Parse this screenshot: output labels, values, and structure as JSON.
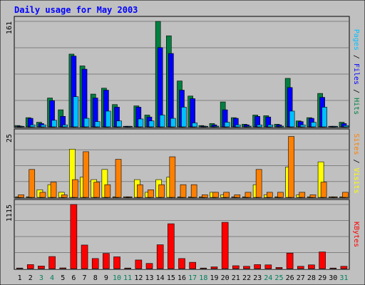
{
  "chart_data": {
    "type": "bar",
    "title": "Daily usage for May 2003",
    "days": [
      "1",
      "2",
      "3",
      "4",
      "5",
      "6",
      "7",
      "8",
      "9",
      "10",
      "11",
      "12",
      "13",
      "14",
      "15",
      "16",
      "17",
      "18",
      "19",
      "20",
      "21",
      "22",
      "23",
      "24",
      "25",
      "26",
      "27",
      "28",
      "29",
      "30",
      "31"
    ],
    "weekend_days": [
      "3",
      "4",
      "10",
      "11",
      "17",
      "18",
      "24",
      "25",
      "31"
    ],
    "panels": [
      {
        "id": "hits-files-pages",
        "ymax": 161,
        "ymax_label": "161",
        "axis_label_parts": [
          {
            "text": "Pages",
            "color": "#00c0ff"
          },
          {
            "text": " / ",
            "color": "#000000"
          },
          {
            "text": "Files",
            "color": "#0000ff"
          },
          {
            "text": " / ",
            "color": "#000000"
          },
          {
            "text": "Hits",
            "color": "#008040"
          }
        ],
        "series": [
          {
            "name": "Hits",
            "color": "#008040",
            "values": [
              2,
              14,
              7,
              44,
              26,
              111,
              93,
              50,
              59,
              34,
              0,
              32,
              18,
              161,
              139,
              70,
              47,
              2,
              5,
              38,
              14,
              4,
              18,
              17,
              4,
              74,
              9,
              14,
              51,
              0,
              7
            ]
          },
          {
            "name": "Files",
            "color": "#0000ff",
            "values": [
              1,
              13,
              5,
              40,
              16,
              108,
              88,
              44,
              56,
              30,
              0,
              30,
              15,
              121,
              112,
              56,
              43,
              1,
              3,
              26,
              13,
              3,
              16,
              15,
              3,
              60,
              8,
              13,
              45,
              0,
              5
            ]
          },
          {
            "name": "Pages",
            "color": "#00c0ff",
            "values": [
              0,
              3,
              3,
              10,
              3,
              46,
              13,
              8,
              24,
              9,
              0,
              12,
              9,
              18,
              13,
              30,
              6,
              0,
              1,
              7,
              3,
              1,
              3,
              3,
              1,
              24,
              3,
              7,
              30,
              0,
              2
            ]
          }
        ]
      },
      {
        "id": "visits-sites",
        "ymax": 25,
        "ymax_label": "25",
        "axis_label_parts": [
          {
            "text": "Sites",
            "color": "#ff8000"
          },
          {
            "text": " / ",
            "color": "#000000"
          },
          {
            "text": "Visits",
            "color": "#ffff00"
          }
        ],
        "series": [
          {
            "name": "Visits",
            "color": "#ffff00",
            "values": [
              0,
              0,
              3,
              5,
              2,
              19,
              8,
              7,
              11,
              0,
              0,
              7,
              2,
              7,
              8,
              0,
              0,
              0,
              2,
              1,
              0,
              0,
              5,
              1,
              0,
              12,
              1,
              0,
              14,
              0,
              0
            ]
          },
          {
            "name": "Sites",
            "color": "#ff8000",
            "values": [
              1,
              11,
              2,
              6,
              1,
              7,
              18,
              6,
              5,
              15,
              0,
              5,
              3,
              5,
              16,
              5,
              5,
              1,
              2,
              2,
              1,
              2,
              11,
              2,
              2,
              24,
              2,
              1,
              6,
              0,
              2
            ]
          }
        ]
      },
      {
        "id": "kbytes",
        "ymax": 1115,
        "ymax_label": "1115",
        "axis_label_parts": [
          {
            "text": "KBytes",
            "color": "#ff0000"
          }
        ],
        "series": [
          {
            "name": "KBytes",
            "color": "#ff0000",
            "values": [
              0,
              70,
              45,
              210,
              10,
              1115,
              410,
              175,
              265,
              205,
              0,
              150,
              90,
              415,
              780,
              175,
              110,
              0,
              30,
              805,
              50,
              40,
              70,
              65,
              20,
              270,
              40,
              65,
              290,
              0,
              40
            ]
          }
        ]
      }
    ]
  }
}
